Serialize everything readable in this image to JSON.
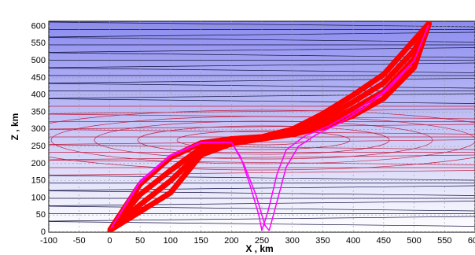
{
  "chart_data": {
    "type": "line",
    "x_label": "X , km",
    "y_label": "Z , km",
    "xlim": [
      -100,
      600
    ],
    "ylim": [
      0,
      615
    ],
    "xticks": [
      -100,
      -50,
      0,
      50,
      100,
      150,
      200,
      250,
      300,
      350,
      400,
      450,
      500,
      550,
      600
    ],
    "yticks": [
      0,
      50,
      100,
      150,
      200,
      250,
      300,
      350,
      400,
      450,
      500,
      550,
      600
    ],
    "grid": true,
    "series": [
      {
        "color": "#ff0000",
        "x": [
          0,
          50,
          100,
          150,
          200,
          250,
          300,
          350,
          400,
          450,
          500,
          525
        ],
        "values": [
          5,
          140,
          218,
          260,
          272,
          278,
          300,
          345,
          400,
          460,
          560,
          610
        ]
      },
      {
        "color": "#ff0000",
        "x": [
          0,
          50,
          100,
          150,
          200,
          250,
          300,
          350,
          400,
          450,
          500,
          525
        ],
        "values": [
          5,
          110,
          180,
          245,
          268,
          276,
          295,
          330,
          380,
          435,
          530,
          610
        ]
      },
      {
        "color": "#ff0000",
        "x": [
          0,
          50,
          100,
          150,
          200,
          250,
          300,
          350,
          400,
          450,
          500,
          525
        ],
        "values": [
          5,
          80,
          150,
          235,
          263,
          274,
          290,
          315,
          360,
          410,
          505,
          610
        ]
      },
      {
        "color": "#ff0000",
        "x": [
          0,
          50,
          100,
          150,
          200,
          250,
          300,
          350,
          400,
          450,
          500,
          525
        ],
        "values": [
          5,
          60,
          115,
          225,
          258,
          272,
          285,
          305,
          340,
          390,
          480,
          610
        ]
      },
      {
        "color": "#ff00ff",
        "x": [
          0,
          50,
          100,
          150,
          200,
          215,
          230,
          245,
          250,
          260,
          275,
          290,
          320,
          360,
          400,
          450,
          500,
          525
        ],
        "values": [
          5,
          150,
          225,
          262,
          262,
          220,
          140,
          50,
          5,
          60,
          170,
          240,
          280,
          310,
          350,
          410,
          500,
          610
        ]
      },
      {
        "color": "#ff00ff",
        "x": [
          0,
          50,
          100,
          150,
          200,
          220,
          240,
          255,
          262,
          275,
          290,
          310,
          340,
          380,
          420,
          460,
          500,
          525
        ],
        "values": [
          5,
          145,
          222,
          260,
          262,
          200,
          110,
          20,
          5,
          90,
          190,
          250,
          285,
          320,
          365,
          420,
          500,
          610
        ]
      }
    ],
    "points": {
      "color": "#ff0000",
      "x": [
        0,
        525
      ],
      "values": [
        5,
        610
      ]
    }
  }
}
